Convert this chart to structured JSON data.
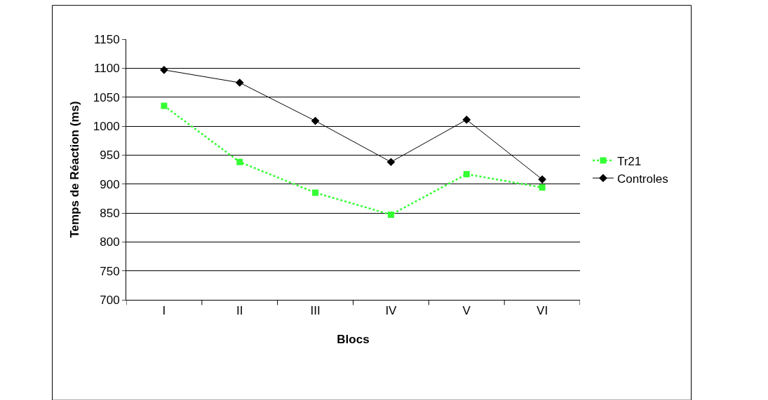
{
  "chart_data": {
    "type": "line",
    "xlabel": "Blocs",
    "ylabel": "Temps de Réaction (ms)",
    "categories": [
      "I",
      "II",
      "III",
      "IV",
      "V",
      "VI"
    ],
    "series": [
      {
        "name": "Tr21",
        "color": "#33ff33",
        "values": [
          1035,
          938,
          885,
          847,
          917,
          894
        ],
        "marker": "square",
        "line_style": "dotted"
      },
      {
        "name": "Controles",
        "color": "#000000",
        "values": [
          1097,
          1075,
          1009,
          938,
          1011,
          908
        ],
        "marker": "diamond",
        "line_style": "solid"
      }
    ],
    "ylim": [
      700,
      1150
    ],
    "yticks": [
      700,
      750,
      800,
      850,
      900,
      950,
      1000,
      1050,
      1100,
      1150
    ],
    "grid": "y",
    "legend": "right"
  }
}
